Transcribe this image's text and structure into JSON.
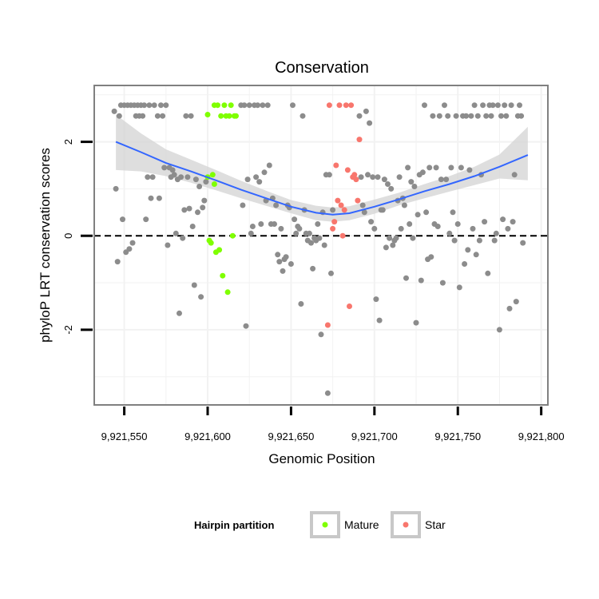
{
  "chart_data": {
    "type": "scatter",
    "title": "Conservation",
    "xlabel": "Genomic Position",
    "ylabel": "phyloP LRT conservation scores",
    "xlim": [
      9921532,
      9921804
    ],
    "ylim": [
      -3.6,
      3.2
    ],
    "x_ticks": [
      {
        "value": 9921550,
        "label": "9,921,550"
      },
      {
        "value": 9921600,
        "label": "9,921,600"
      },
      {
        "value": 9921650,
        "label": "9,921,650"
      },
      {
        "value": 9921700,
        "label": "9,921,700"
      },
      {
        "value": 9921750,
        "label": "9,921,750"
      },
      {
        "value": 9921800,
        "label": "9,921,800"
      }
    ],
    "y_ticks": [
      {
        "value": -2,
        "label": "-2"
      },
      {
        "value": 0,
        "label": "0"
      },
      {
        "value": 2,
        "label": "2"
      }
    ],
    "x_minor_grid": [
      9921575,
      9921625,
      9921675,
      9921725,
      9921775
    ],
    "y_minor_grid": [
      -3,
      -1,
      1,
      3
    ],
    "reference_line": {
      "y": 0,
      "style": "dashed"
    },
    "grid": true,
    "colors": {
      "background": "#ffffff",
      "grid": "#f2f2f2",
      "other": "#8c8c8c",
      "mature": "#7fff00",
      "star": "#f8766d",
      "smooth_line": "#3366ff",
      "smooth_band": "#d3d3d3"
    },
    "smooth": {
      "x": [
        9921545,
        9921560,
        9921575,
        9921590,
        9921605,
        9921620,
        9921635,
        9921650,
        9921665,
        9921675,
        9921685,
        9921700,
        9921715,
        9921730,
        9921745,
        9921760,
        9921775,
        9921792
      ],
      "y": [
        2.0,
        1.78,
        1.55,
        1.37,
        1.18,
        0.98,
        0.8,
        0.62,
        0.49,
        0.45,
        0.48,
        0.62,
        0.78,
        0.95,
        1.1,
        1.27,
        1.47,
        1.72
      ],
      "lower": [
        1.4,
        1.37,
        1.27,
        1.13,
        0.97,
        0.8,
        0.64,
        0.48,
        0.33,
        0.3,
        0.33,
        0.47,
        0.65,
        0.8,
        0.94,
        1.08,
        1.22,
        1.18
      ],
      "upper": [
        2.58,
        2.18,
        1.84,
        1.62,
        1.4,
        1.17,
        0.96,
        0.76,
        0.64,
        0.6,
        0.63,
        0.77,
        0.92,
        1.1,
        1.27,
        1.47,
        1.73,
        2.32
      ]
    },
    "series": [
      {
        "name": "Other",
        "in_legend": false,
        "points": [
          [
            9921544,
            2.65
          ],
          [
            9921545,
            1.0
          ],
          [
            9921546,
            -0.55
          ],
          [
            9921547,
            2.55
          ],
          [
            9921548,
            2.78
          ],
          [
            9921549,
            0.35
          ],
          [
            9921550,
            2.78
          ],
          [
            9921551,
            -0.35
          ],
          [
            9921552,
            2.78
          ],
          [
            9921553,
            -0.28
          ],
          [
            9921554,
            2.78
          ],
          [
            9921555,
            -0.15
          ],
          [
            9921556,
            2.78
          ],
          [
            9921557,
            2.55
          ],
          [
            9921558,
            2.78
          ],
          [
            9921559,
            2.55
          ],
          [
            9921560,
            2.78
          ],
          [
            9921561,
            2.55
          ],
          [
            9921562,
            2.78
          ],
          [
            9921563,
            0.35
          ],
          [
            9921564,
            1.25
          ],
          [
            9921565,
            2.78
          ],
          [
            9921566,
            0.8
          ],
          [
            9921567,
            1.25
          ],
          [
            9921568,
            2.78
          ],
          [
            9921570,
            2.55
          ],
          [
            9921571,
            0.8
          ],
          [
            9921572,
            2.78
          ],
          [
            9921573,
            2.55
          ],
          [
            9921574,
            1.45
          ],
          [
            9921575,
            2.78
          ],
          [
            9921576,
            -0.2
          ],
          [
            9921577,
            1.45
          ],
          [
            9921578,
            1.25
          ],
          [
            9921579,
            1.4
          ],
          [
            9921580,
            1.3
          ],
          [
            9921581,
            0.05
          ],
          [
            9921582,
            1.2
          ],
          [
            9921583,
            -1.65
          ],
          [
            9921584,
            1.25
          ],
          [
            9921585,
            -0.05
          ],
          [
            9921586,
            0.55
          ],
          [
            9921587,
            2.55
          ],
          [
            9921588,
            1.25
          ],
          [
            9921589,
            0.58
          ],
          [
            9921590,
            2.55
          ],
          [
            9921591,
            0.2
          ],
          [
            9921592,
            -1.05
          ],
          [
            9921593,
            1.2
          ],
          [
            9921594,
            0.5
          ],
          [
            9921595,
            1.05
          ],
          [
            9921596,
            -1.3
          ],
          [
            9921597,
            0.6
          ],
          [
            9921598,
            0.75
          ],
          [
            9921599,
            1.15
          ],
          [
            9921620,
            2.78
          ],
          [
            9921621,
            0.65
          ],
          [
            9921622,
            2.78
          ],
          [
            9921623,
            -1.92
          ],
          [
            9921624,
            1.2
          ],
          [
            9921625,
            2.78
          ],
          [
            9921626,
            0.05
          ],
          [
            9921627,
            0.2
          ],
          [
            9921628,
            2.78
          ],
          [
            9921629,
            1.25
          ],
          [
            9921630,
            2.78
          ],
          [
            9921631,
            1.15
          ],
          [
            9921632,
            0.25
          ],
          [
            9921633,
            2.78
          ],
          [
            9921634,
            1.35
          ],
          [
            9921635,
            0.75
          ],
          [
            9921636,
            2.78
          ],
          [
            9921637,
            1.5
          ],
          [
            9921638,
            0.25
          ],
          [
            9921639,
            0.8
          ],
          [
            9921640,
            0.25
          ],
          [
            9921641,
            0.65
          ],
          [
            9921642,
            -0.4
          ],
          [
            9921643,
            -0.55
          ],
          [
            9921644,
            0.15
          ],
          [
            9921645,
            -0.75
          ],
          [
            9921646,
            -0.5
          ],
          [
            9921647,
            -0.45
          ],
          [
            9921648,
            0.65
          ],
          [
            9921649,
            0.6
          ],
          [
            9921650,
            -0.6
          ],
          [
            9921651,
            2.78
          ],
          [
            9921652,
            0.35
          ],
          [
            9921653,
            0.05
          ],
          [
            9921654,
            0.2
          ],
          [
            9921655,
            0.15
          ],
          [
            9921656,
            -1.45
          ],
          [
            9921657,
            2.55
          ],
          [
            9921658,
            0.55
          ],
          [
            9921659,
            0.05
          ],
          [
            9921660,
            -0.1
          ],
          [
            9921661,
            0.05
          ],
          [
            9921662,
            -0.15
          ],
          [
            9921663,
            -0.7
          ],
          [
            9921664,
            -0.05
          ],
          [
            9921665,
            -0.1
          ],
          [
            9921666,
            0.25
          ],
          [
            9921667,
            -0.05
          ],
          [
            9921668,
            -2.1
          ],
          [
            9921669,
            0.5
          ],
          [
            9921670,
            -0.2
          ],
          [
            9921671,
            1.3
          ],
          [
            9921672,
            -3.35
          ],
          [
            9921673,
            1.3
          ],
          [
            9921674,
            -0.8
          ],
          [
            9921675,
            0.55
          ],
          [
            9921691,
            2.55
          ],
          [
            9921692,
            1.25
          ],
          [
            9921693,
            0.65
          ],
          [
            9921694,
            0.5
          ],
          [
            9921695,
            2.65
          ],
          [
            9921696,
            1.3
          ],
          [
            9921697,
            2.4
          ],
          [
            9921698,
            0.3
          ],
          [
            9921699,
            1.25
          ],
          [
            9921700,
            0.15
          ],
          [
            9921701,
            -1.35
          ],
          [
            9921702,
            1.25
          ],
          [
            9921703,
            -1.8
          ],
          [
            9921704,
            0.55
          ],
          [
            9921705,
            0.55
          ],
          [
            9921706,
            1.2
          ],
          [
            9921707,
            -0.25
          ],
          [
            9921708,
            1.1
          ],
          [
            9921709,
            -0.05
          ],
          [
            9921710,
            1.0
          ],
          [
            9921711,
            -0.2
          ],
          [
            9921712,
            -0.1
          ],
          [
            9921713,
            -0.05
          ],
          [
            9921714,
            0.75
          ],
          [
            9921715,
            1.25
          ],
          [
            9921716,
            0.15
          ],
          [
            9921717,
            0.8
          ],
          [
            9921718,
            0.65
          ],
          [
            9921719,
            -0.9
          ],
          [
            9921720,
            1.45
          ],
          [
            9921721,
            0.25
          ],
          [
            9921722,
            1.15
          ],
          [
            9921723,
            -0.05
          ],
          [
            9921724,
            1.05
          ],
          [
            9921725,
            -1.85
          ],
          [
            9921726,
            0.45
          ],
          [
            9921727,
            1.3
          ],
          [
            9921728,
            -0.95
          ],
          [
            9921729,
            1.35
          ],
          [
            9921730,
            2.78
          ],
          [
            9921731,
            0.5
          ],
          [
            9921732,
            -0.5
          ],
          [
            9921733,
            1.45
          ],
          [
            9921734,
            -0.45
          ],
          [
            9921735,
            2.55
          ],
          [
            9921736,
            0.25
          ],
          [
            9921737,
            1.45
          ],
          [
            9921738,
            0.2
          ],
          [
            9921739,
            2.55
          ],
          [
            9921740,
            1.2
          ],
          [
            9921741,
            -1.0
          ],
          [
            9921742,
            2.78
          ],
          [
            9921743,
            1.2
          ],
          [
            9921744,
            2.55
          ],
          [
            9921745,
            0.05
          ],
          [
            9921746,
            1.45
          ],
          [
            9921747,
            0.5
          ],
          [
            9921748,
            -0.1
          ],
          [
            9921749,
            2.55
          ],
          [
            9921750,
            0.25
          ],
          [
            9921751,
            -1.1
          ],
          [
            9921752,
            1.45
          ],
          [
            9921753,
            2.55
          ],
          [
            9921754,
            -0.6
          ],
          [
            9921755,
            2.55
          ],
          [
            9921756,
            -0.3
          ],
          [
            9921757,
            1.4
          ],
          [
            9921758,
            2.55
          ],
          [
            9921759,
            0.15
          ],
          [
            9921760,
            2.78
          ],
          [
            9921761,
            -0.4
          ],
          [
            9921762,
            2.55
          ],
          [
            9921763,
            -0.1
          ],
          [
            9921764,
            1.3
          ],
          [
            9921765,
            2.78
          ],
          [
            9921766,
            0.3
          ],
          [
            9921767,
            2.55
          ],
          [
            9921768,
            -0.8
          ],
          [
            9921769,
            2.78
          ],
          [
            9921770,
            2.55
          ],
          [
            9921771,
            2.78
          ],
          [
            9921772,
            -0.1
          ],
          [
            9921773,
            0.05
          ],
          [
            9921774,
            2.78
          ],
          [
            9921775,
            -2.0
          ],
          [
            9921776,
            2.55
          ],
          [
            9921777,
            0.35
          ],
          [
            9921778,
            2.78
          ],
          [
            9921779,
            2.55
          ],
          [
            9921780,
            0.15
          ],
          [
            9921781,
            -1.55
          ],
          [
            9921782,
            2.78
          ],
          [
            9921783,
            0.3
          ],
          [
            9921784,
            1.3
          ],
          [
            9921785,
            -1.4
          ],
          [
            9921786,
            2.55
          ],
          [
            9921787,
            2.78
          ],
          [
            9921788,
            2.55
          ],
          [
            9921789,
            -0.15
          ]
        ]
      },
      {
        "name": "Mature",
        "in_legend": true,
        "points": [
          [
            9921600,
            2.58
          ],
          [
            9921600,
            1.25
          ],
          [
            9921601,
            -0.1
          ],
          [
            9921602,
            -0.15
          ],
          [
            9921603,
            1.3
          ],
          [
            9921604,
            1.1
          ],
          [
            9921604,
            2.78
          ],
          [
            9921605,
            -0.35
          ],
          [
            9921606,
            2.78
          ],
          [
            9921607,
            -0.3
          ],
          [
            9921608,
            2.55
          ],
          [
            9921609,
            -0.85
          ],
          [
            9921610,
            2.78
          ],
          [
            9921611,
            2.55
          ],
          [
            9921612,
            -1.2
          ],
          [
            9921613,
            2.55
          ],
          [
            9921614,
            2.78
          ],
          [
            9921615,
            0.0
          ],
          [
            9921616,
            2.55
          ],
          [
            9921617,
            2.55
          ]
        ]
      },
      {
        "name": "Star",
        "in_legend": true,
        "points": [
          [
            9921673,
            2.78
          ],
          [
            9921675,
            0.15
          ],
          [
            9921676,
            0.3
          ],
          [
            9921677,
            1.5
          ],
          [
            9921678,
            0.75
          ],
          [
            9921679,
            2.78
          ],
          [
            9921680,
            0.65
          ],
          [
            9921681,
            0.0
          ],
          [
            9921682,
            0.55
          ],
          [
            9921683,
            2.78
          ],
          [
            9921684,
            1.4
          ],
          [
            9921685,
            -1.5
          ],
          [
            9921686,
            2.78
          ],
          [
            9921687,
            1.25
          ],
          [
            9921688,
            1.3
          ],
          [
            9921689,
            1.2
          ],
          [
            9921690,
            0.75
          ],
          [
            9921691,
            2.05
          ],
          [
            9921672,
            -1.9
          ]
        ]
      }
    ],
    "legend": {
      "title": "Hairpin partition",
      "placement": "bottom",
      "items": [
        {
          "label": "Mature",
          "color": "#7fff00"
        },
        {
          "label": "Star",
          "color": "#f8766d"
        }
      ]
    }
  }
}
